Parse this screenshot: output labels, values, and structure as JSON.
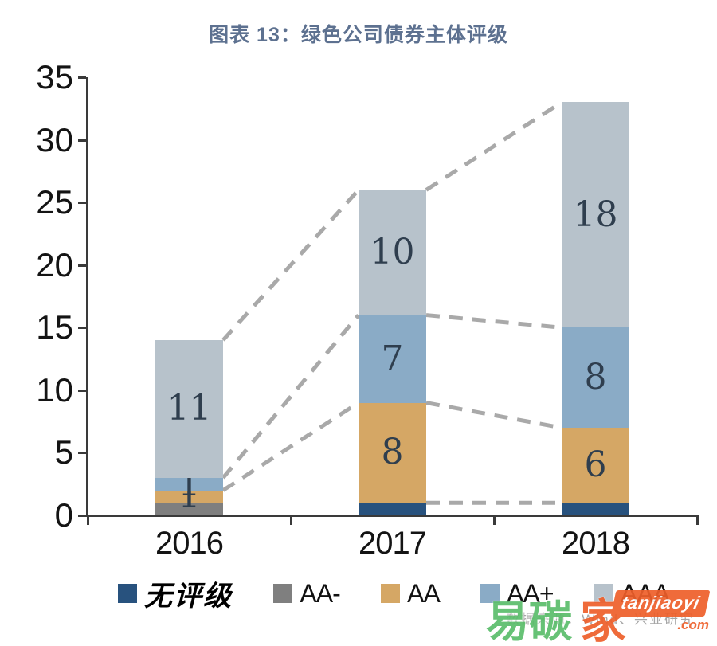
{
  "title": "图表 13：绿色公司债券主体评级",
  "footer": {
    "source": "数据来源：Wind、兴业研究"
  },
  "watermark": {
    "cn_green": "易碳",
    "cn_orange": "家",
    "badge": "tanjiaoyi",
    "suffix": ".com"
  },
  "colors": {
    "title": "#5d7190",
    "axis": "#3a3a3a",
    "bar_label": "#2f3e4e",
    "dash": "#a9a9a9",
    "footer": "#a6a6a6",
    "watermark_green": "#5bbd6b",
    "watermark_orange": "#ee5f2a"
  },
  "chart_data": {
    "type": "bar",
    "stacked": true,
    "title": "图表 13：绿色公司债券主体评级",
    "xlabel": "",
    "ylabel": "",
    "categories": [
      "2016",
      "2017",
      "2018"
    ],
    "series": [
      {
        "name": "无评级",
        "color": "#28527e",
        "values": [
          0,
          1,
          1
        ],
        "show_labels": [
          false,
          false,
          false
        ]
      },
      {
        "name": "AA-",
        "color": "#7f7f7f",
        "values": [
          1,
          0,
          0
        ],
        "show_labels": [
          false,
          false,
          false
        ]
      },
      {
        "name": "AA",
        "color": "#d5a765",
        "values": [
          1,
          8,
          6
        ],
        "show_labels": [
          true,
          true,
          true
        ]
      },
      {
        "name": "AA+",
        "color": "#8aabc6",
        "values": [
          1,
          7,
          8
        ],
        "show_labels": [
          true,
          true,
          true
        ]
      },
      {
        "name": "AAA",
        "color": "#b7c2cb",
        "values": [
          11,
          10,
          18
        ],
        "show_labels": [
          true,
          true,
          true
        ]
      }
    ],
    "totals": [
      14,
      26,
      33
    ],
    "ylim": [
      0,
      35
    ],
    "yticks": [
      0,
      5,
      10,
      15,
      20,
      25,
      30,
      35
    ],
    "grid": false,
    "legend_position": "bottom",
    "connectors": [
      {
        "from_cat": 0,
        "to_cat": 1,
        "from_val": 14,
        "to_val": 26
      },
      {
        "from_cat": 0,
        "to_cat": 1,
        "from_val": 3,
        "to_val": 16
      },
      {
        "from_cat": 0,
        "to_cat": 1,
        "from_val": 2,
        "to_val": 9
      },
      {
        "from_cat": 1,
        "to_cat": 2,
        "from_val": 26,
        "to_val": 33
      },
      {
        "from_cat": 1,
        "to_cat": 2,
        "from_val": 16,
        "to_val": 15
      },
      {
        "from_cat": 1,
        "to_cat": 2,
        "from_val": 9,
        "to_val": 7
      },
      {
        "from_cat": 1,
        "to_cat": 2,
        "from_val": 1,
        "to_val": 1
      }
    ]
  },
  "legend": {
    "items": [
      {
        "label": "无评级",
        "color": "#28527e"
      },
      {
        "label": "AA-",
        "color": "#7f7f7f"
      },
      {
        "label": "AA",
        "color": "#d5a765"
      },
      {
        "label": "AA+",
        "color": "#8aabc6"
      },
      {
        "label": "AAA",
        "color": "#b7c2cb"
      }
    ]
  }
}
